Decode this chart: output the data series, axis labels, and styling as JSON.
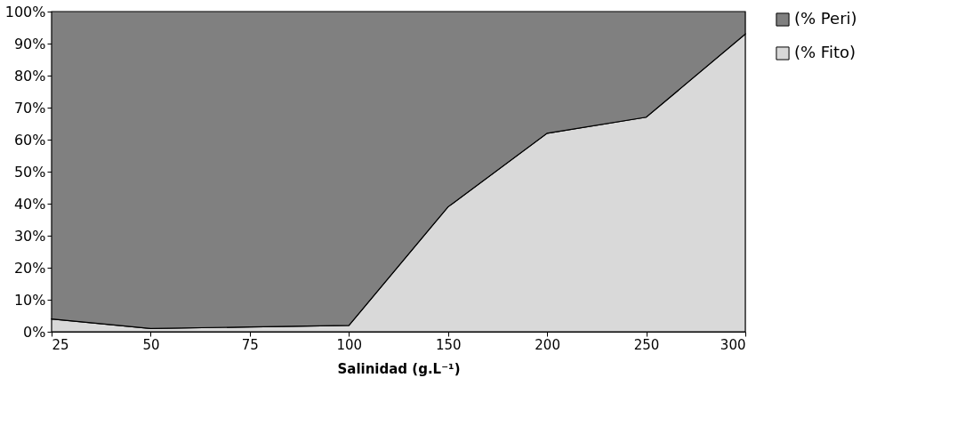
{
  "chart_data": {
    "type": "area",
    "stacked": true,
    "xlabel": "Salinidad  (g.L⁻¹)",
    "categories": [
      "25",
      "50",
      "75",
      "100",
      "150",
      "200",
      "250",
      "300"
    ],
    "series": [
      {
        "name": "(% Fito)",
        "color": "#d9d9d9",
        "values": [
          4,
          1,
          1.5,
          2,
          39,
          62,
          67,
          93
        ]
      },
      {
        "name": "(% Peri)",
        "color": "#808080",
        "values": [
          96,
          99,
          98.5,
          98,
          61,
          38,
          33,
          7
        ]
      }
    ],
    "ylim": [
      0,
      100
    ],
    "yticks": [
      {
        "value": 0,
        "label": "0%"
      },
      {
        "value": 10,
        "label": "10%"
      },
      {
        "value": 20,
        "label": "20%"
      },
      {
        "value": 30,
        "label": "30%"
      },
      {
        "value": 40,
        "label": "40%"
      },
      {
        "value": 50,
        "label": "50%"
      },
      {
        "value": 60,
        "label": "60%"
      },
      {
        "value": 70,
        "label": "70%"
      },
      {
        "value": 80,
        "label": "80%"
      },
      {
        "value": 90,
        "label": "90%"
      },
      {
        "value": 100,
        "label": "100%"
      }
    ],
    "legend": "right"
  }
}
